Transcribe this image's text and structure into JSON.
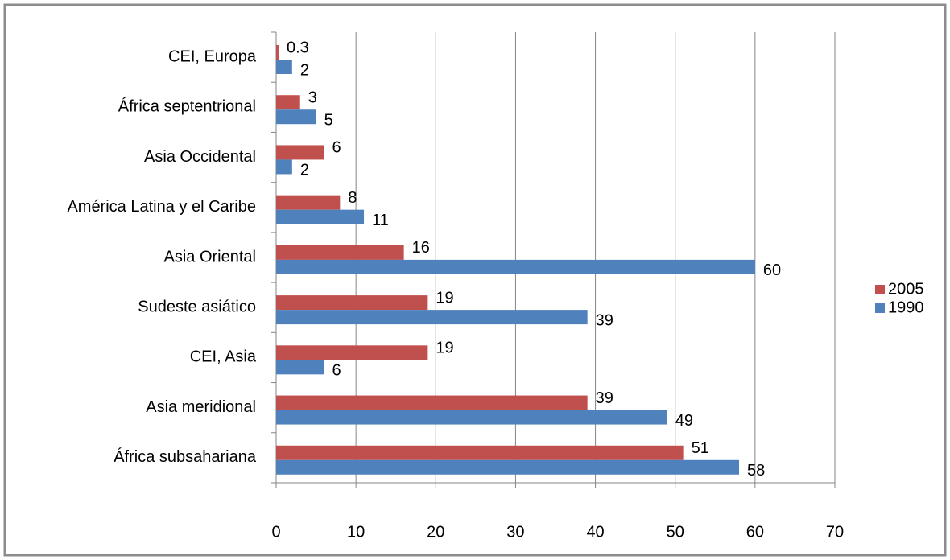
{
  "chart_data": {
    "type": "bar",
    "orientation": "horizontal",
    "categories": [
      "CEI, Europa",
      "África septentrional",
      "Asia Occidental",
      "América Latina y el Caribe",
      "Asia Oriental",
      "Sudeste asiático",
      "CEI, Asia",
      "Asia meridional",
      "África subsahariana"
    ],
    "series": [
      {
        "name": "2005",
        "color": "#c0504d",
        "values": [
          0.3,
          3,
          6,
          8,
          16,
          19,
          19,
          39,
          51
        ]
      },
      {
        "name": "1990",
        "color": "#4f81bd",
        "values": [
          2,
          5,
          2,
          11,
          60,
          39,
          6,
          49,
          58
        ]
      }
    ],
    "xlim": [
      0,
      70
    ],
    "xticks": [
      0,
      10,
      20,
      30,
      40,
      50,
      60,
      70
    ],
    "grid": true,
    "legend": "right"
  }
}
